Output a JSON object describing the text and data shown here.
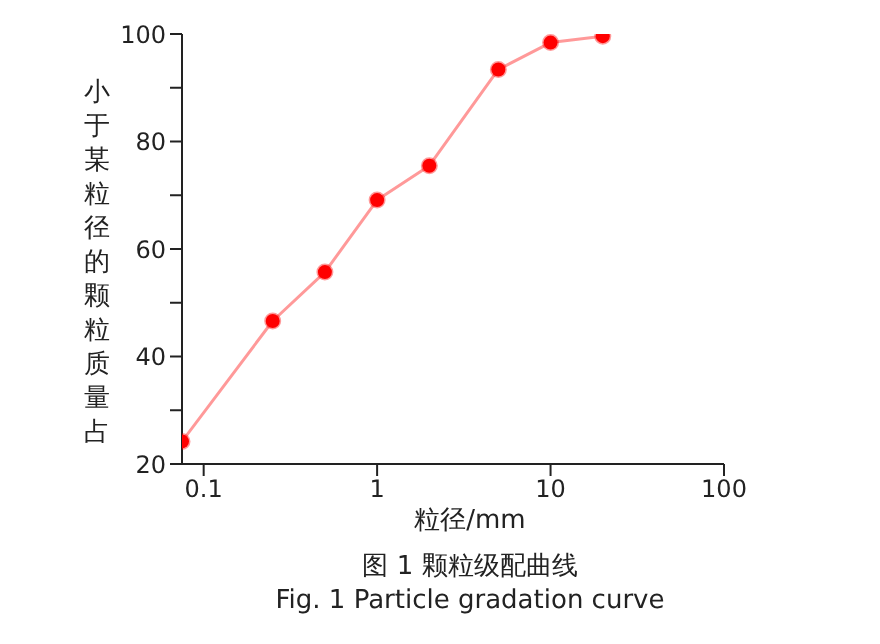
{
  "chart_data": {
    "type": "line",
    "xlabel": "粒径/mm",
    "ylabel": "小于某粒径的颗粒质量占",
    "annotations": [
      "图 1 颗粒级配曲线",
      "Fig. 1 Particle gradation curve"
    ],
    "x": [
      0.075,
      0.25,
      0.5,
      1,
      2,
      5,
      10,
      20
    ],
    "series": [
      {
        "color": "#ff0000",
        "values": [
          24.2,
          46.6,
          55.7,
          69.1,
          75.5,
          93.4,
          98.4,
          99.6
        ]
      }
    ],
    "xlim": [
      0.075,
      100
    ],
    "xticks": [
      0.1,
      1,
      10,
      100
    ],
    "ylim": [
      20,
      100
    ],
    "yticks": [
      20,
      {
        "value": 30,
        "label": null
      },
      40,
      {
        "value": 50,
        "label": null
      },
      60,
      {
        "value": 70,
        "label": null
      },
      80,
      {
        "value": 90,
        "label": null
      },
      100
    ],
    "log": "x",
    "grid": false,
    "legend": false,
    "marker": "circle",
    "line_style": "solid"
  }
}
